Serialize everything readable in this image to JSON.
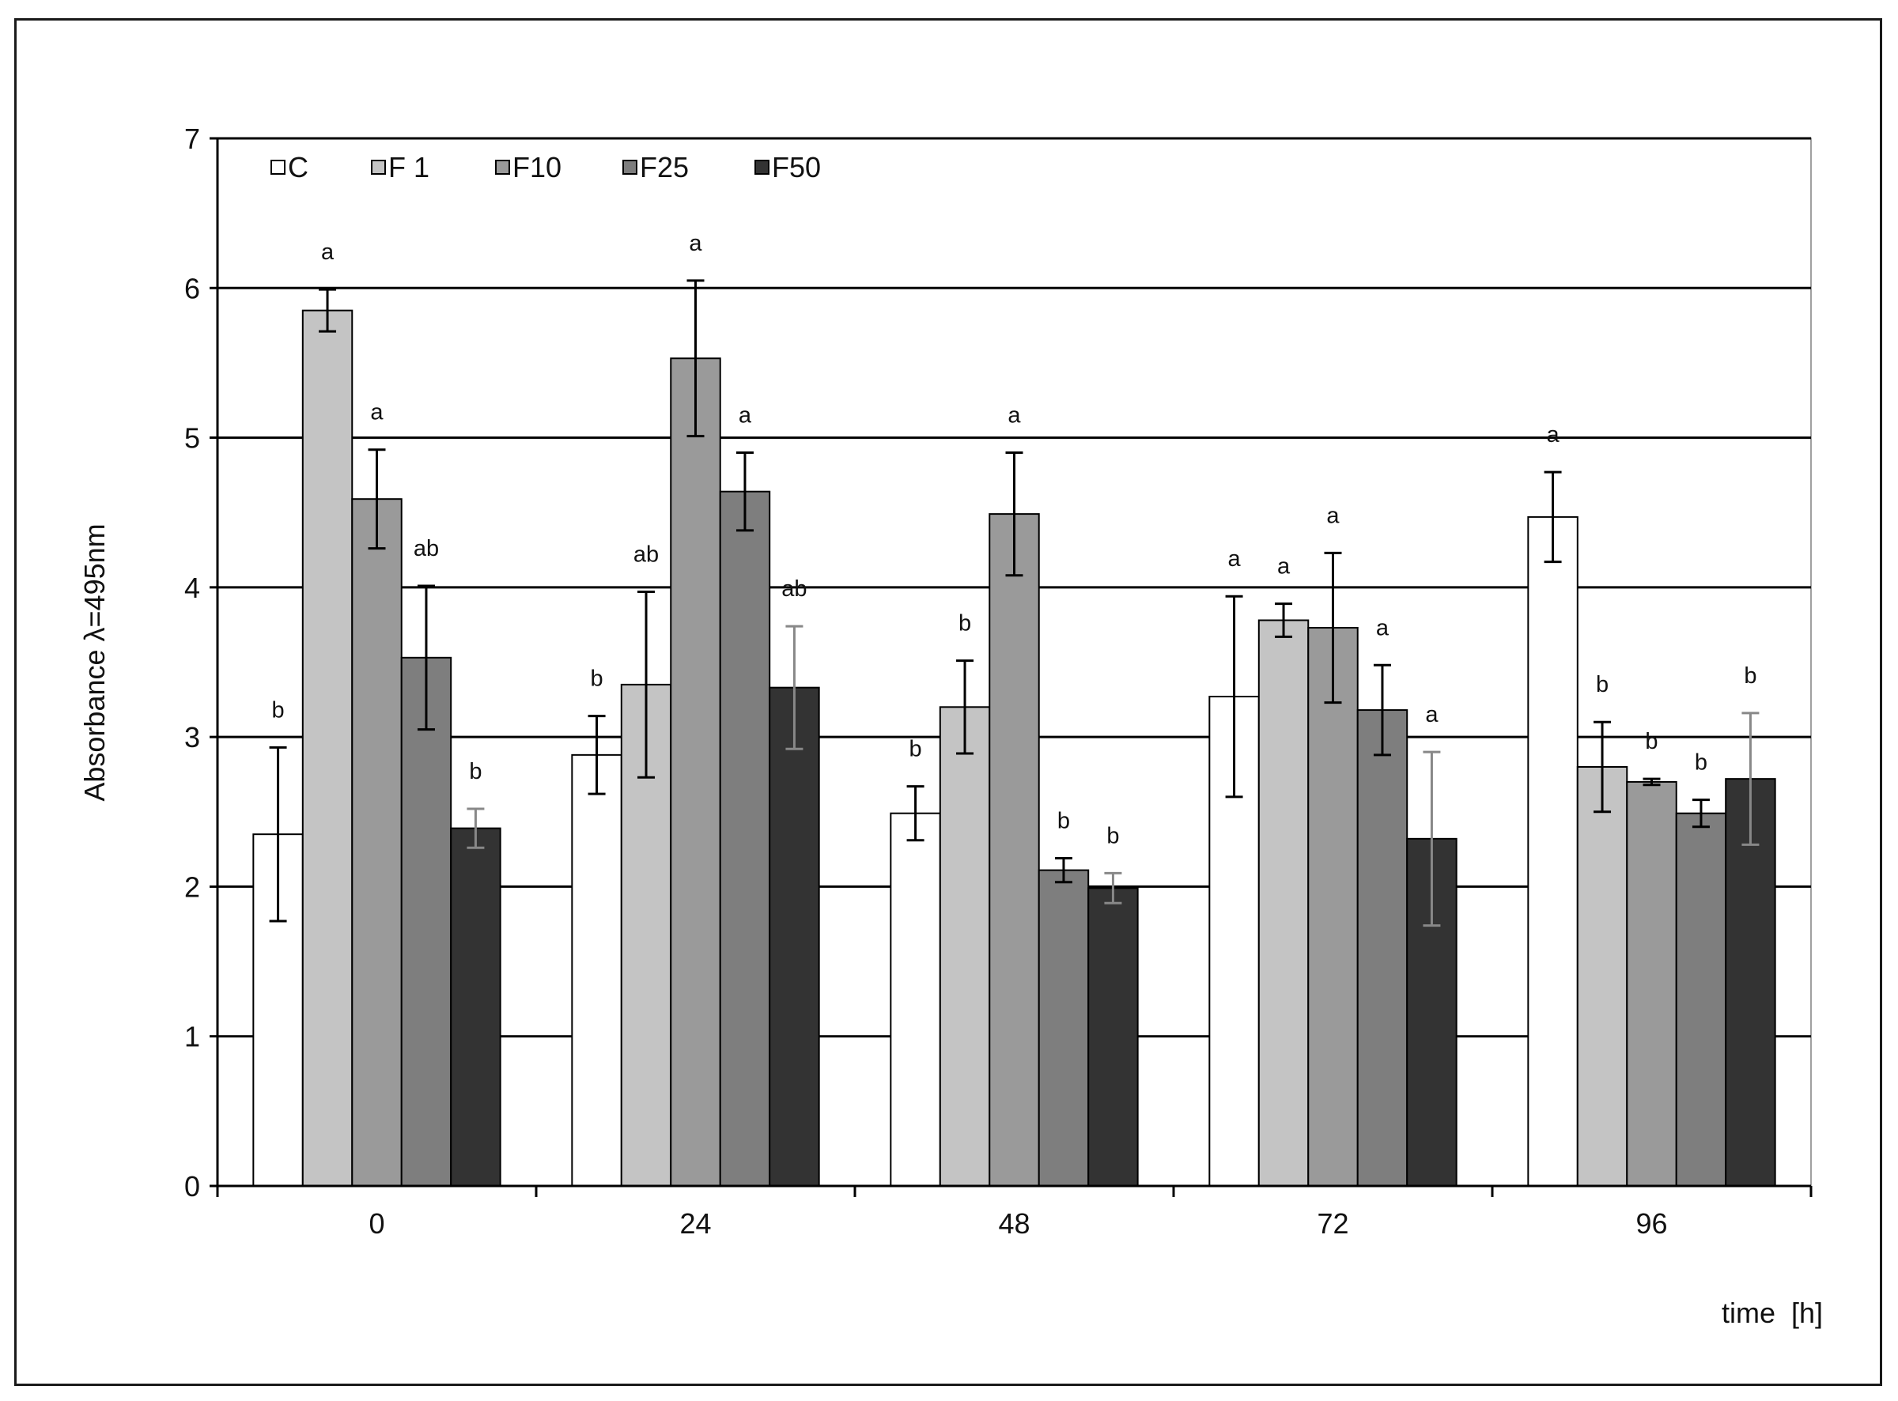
{
  "chart_data": {
    "type": "bar",
    "title": "",
    "xlabel": "time  [h]",
    "ylabel": "Absorbance λ=495nm",
    "ylim": [
      0,
      7
    ],
    "yticks": [
      0,
      1,
      2,
      3,
      4,
      5,
      6,
      7
    ],
    "grid": true,
    "legend_position": "top-left",
    "categories": [
      "0",
      "24",
      "48",
      "72",
      "96"
    ],
    "series": [
      {
        "name": "C",
        "color": "#ffffff",
        "values": [
          2.35,
          2.88,
          2.49,
          3.27,
          4.47
        ],
        "errors": [
          0.58,
          0.26,
          0.18,
          0.67,
          0.3
        ],
        "letters": [
          "b",
          "b",
          "b",
          "a",
          "a"
        ]
      },
      {
        "name": "F 1",
        "color": "#c4c4c4",
        "values": [
          5.85,
          3.35,
          3.2,
          3.78,
          2.8
        ],
        "errors": [
          0.14,
          0.62,
          0.31,
          0.11,
          0.3
        ],
        "letters": [
          "a",
          "ab",
          "b",
          "a",
          "b"
        ]
      },
      {
        "name": "F10",
        "color": "#9a9a9a",
        "values": [
          4.59,
          5.53,
          4.49,
          3.73,
          2.7
        ],
        "errors": [
          0.33,
          0.52,
          0.41,
          0.5,
          0.02
        ],
        "letters": [
          "a",
          "a",
          "a",
          "a",
          "b"
        ]
      },
      {
        "name": "F25",
        "color": "#7e7e7e",
        "values": [
          3.53,
          4.64,
          2.11,
          3.18,
          2.49
        ],
        "errors": [
          0.48,
          0.26,
          0.08,
          0.3,
          0.09
        ],
        "letters": [
          "ab",
          "a",
          "b",
          "a",
          "b"
        ]
      },
      {
        "name": "F50",
        "color": "#333333",
        "values": [
          2.39,
          3.33,
          1.99,
          2.32,
          2.72
        ],
        "errors": [
          0.13,
          0.41,
          0.1,
          0.58,
          0.44
        ],
        "letters": [
          "b",
          "ab",
          "b",
          "a",
          "b"
        ]
      }
    ]
  }
}
